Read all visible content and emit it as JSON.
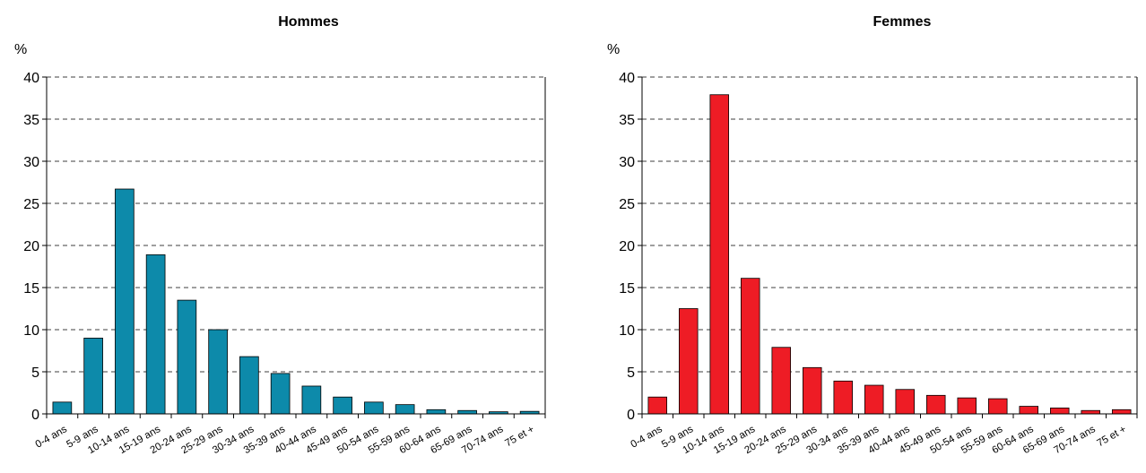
{
  "chart_data": [
    {
      "type": "bar",
      "title": "Hommes",
      "ylabel": "%",
      "ylim": [
        0,
        40
      ],
      "yticks": [
        0,
        5,
        10,
        15,
        20,
        25,
        30,
        35,
        40
      ],
      "grid": true,
      "color": "#0d8aaa",
      "categories": [
        "0-4 ans",
        "5-9 ans",
        "10-14 ans",
        "15-19 ans",
        "20-24 ans",
        "25-29 ans",
        "30-34 ans",
        "35-39 ans",
        "40-44 ans",
        "45-49 ans",
        "50-54 ans",
        "55-59 ans",
        "60-64 ans",
        "65-69 ans",
        "70-74 ans",
        "75 et +"
      ],
      "values": [
        1.4,
        9.0,
        26.7,
        18.9,
        13.5,
        10.0,
        6.8,
        4.8,
        3.3,
        2.0,
        1.4,
        1.1,
        0.5,
        0.4,
        0.25,
        0.3
      ]
    },
    {
      "type": "bar",
      "title": "Femmes",
      "ylabel": "%",
      "ylim": [
        0,
        40
      ],
      "yticks": [
        0,
        5,
        10,
        15,
        20,
        25,
        30,
        35,
        40
      ],
      "grid": true,
      "color": "#ee1c25",
      "categories": [
        "0-4 ans",
        "5-9 ans",
        "10-14 ans",
        "15-19 ans",
        "20-24 ans",
        "25-29 ans",
        "30-34 ans",
        "35-39 ans",
        "40-44 ans",
        "45-49 ans",
        "50-54 ans",
        "55-59 ans",
        "60-64 ans",
        "65-69 ans",
        "70-74 ans",
        "75 et +"
      ],
      "values": [
        2.0,
        12.5,
        37.9,
        16.1,
        7.9,
        5.5,
        3.9,
        3.4,
        2.9,
        2.2,
        1.9,
        1.8,
        0.9,
        0.7,
        0.4,
        0.5
      ]
    }
  ]
}
